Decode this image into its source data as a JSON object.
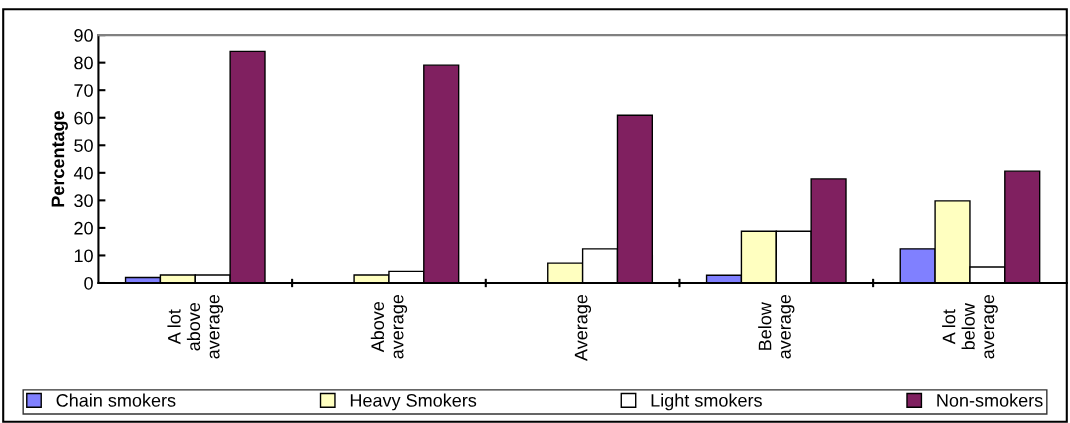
{
  "chart_data": {
    "type": "bar",
    "ylabel": "Percentage",
    "categories": [
      "A lot\nabove\naverage",
      "Above\naverage",
      "Average",
      "Below\naverage",
      "A lot\nbelow\naverage"
    ],
    "series": [
      {
        "name": "Chain smokers",
        "color": "#8080ff",
        "values": [
          2,
          null,
          null,
          2.8,
          12.4
        ]
      },
      {
        "name": "Heavy Smokers",
        "color": "#ffffc0",
        "values": [
          2.9,
          2.9,
          7.2,
          18.8,
          29.8
        ]
      },
      {
        "name": "Light smokers",
        "color": "#ffffff",
        "values": [
          2.9,
          4.2,
          12.4,
          18.8,
          5.8
        ]
      },
      {
        "name": "Non-smokers",
        "color": "#802060",
        "values": [
          84.1,
          79.1,
          60.9,
          37.8,
          40.6
        ]
      }
    ],
    "ylim": [
      0,
      90
    ],
    "yticks": [
      0,
      10,
      20,
      30,
      40,
      50,
      60,
      70,
      80,
      90
    ],
    "grid": false,
    "legend": "bottom"
  }
}
